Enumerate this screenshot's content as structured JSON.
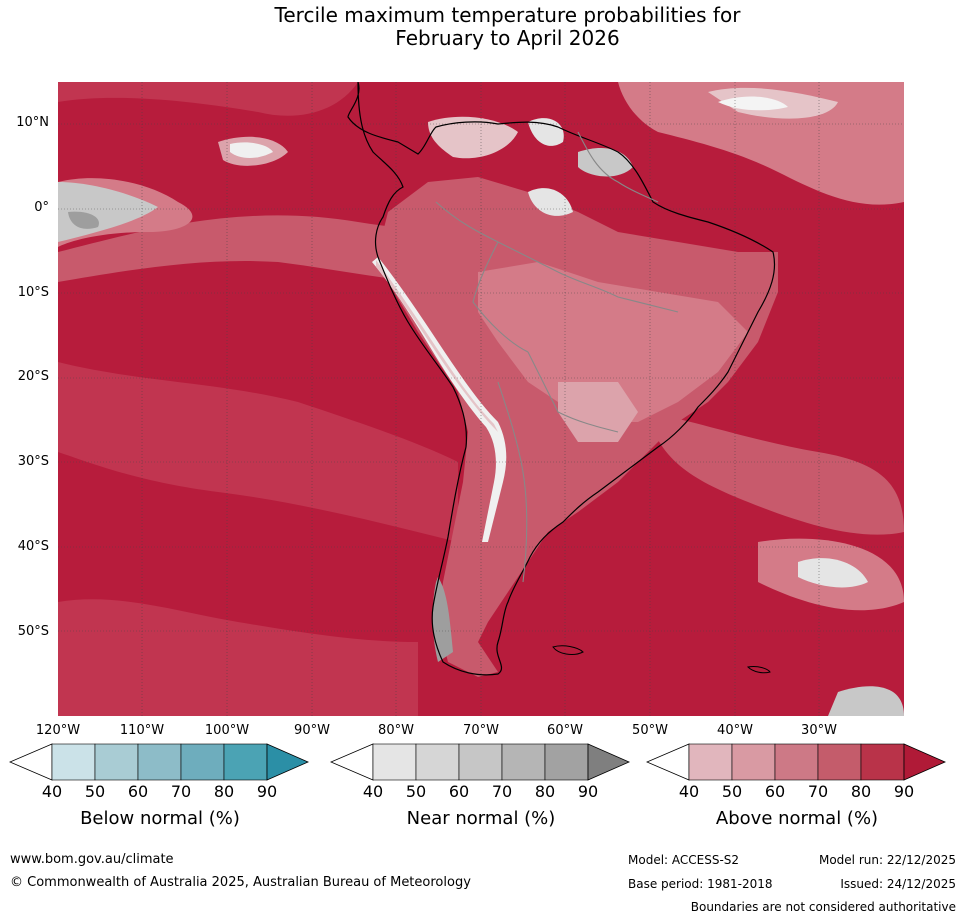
{
  "title": {
    "line1": "Tercile maximum temperature probabilities for",
    "line2": "February to April 2026"
  },
  "map": {
    "lat_labels": [
      "10°N",
      "0°",
      "10°S",
      "20°S",
      "30°S",
      "40°S",
      "50°S"
    ],
    "lon_labels": [
      "120°W",
      "110°W",
      "100°W",
      "90°W",
      "80°W",
      "70°W",
      "60°W",
      "50°W",
      "40°W",
      "30°W"
    ],
    "region": "South America and surrounding oceans",
    "colors": {
      "above_90": "#b71c3c",
      "above_80": "#c13550",
      "above_70": "#c85a6c",
      "above_60": "#d47b88",
      "above_50": "#dca3ab",
      "above_40": "#e5c4c8",
      "near": "#c8c8c8",
      "white": "#f4f4f4"
    }
  },
  "legend": {
    "ticks": [
      "40",
      "50",
      "60",
      "70",
      "80",
      "90"
    ],
    "below": {
      "label": "Below normal (%)",
      "colors": [
        "#cbe2e8",
        "#a9ccd4",
        "#8dbcc8",
        "#6eadbd",
        "#4ba3b4",
        "#2b8fa6"
      ]
    },
    "near": {
      "label": "Near normal (%)",
      "colors": [
        "#e5e5e5",
        "#d6d6d6",
        "#c6c6c6",
        "#b5b5b5",
        "#a2a2a2",
        "#7f7f7f"
      ]
    },
    "above": {
      "label": "Above normal (%)",
      "colors": [
        "#e1b6bd",
        "#d99aa3",
        "#cd7986",
        "#c45c6b",
        "#b93349",
        "#b01a37"
      ]
    }
  },
  "footer": {
    "website": "www.bom.gov.au/climate",
    "copyright": "© Commonwealth of Australia 2025, Australian Bureau of Meteorology",
    "model": "Model: ACCESS-S2",
    "model_run": "Model run: 22/12/2025",
    "base_period": "Base period: 1981-2018",
    "issued": "Issued: 24/12/2025",
    "disclaimer": "Boundaries are not considered authoritative"
  }
}
